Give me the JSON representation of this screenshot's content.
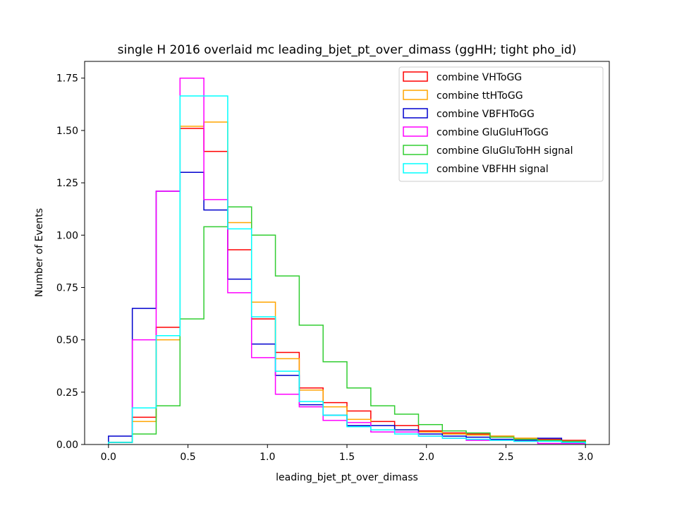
{
  "chart_data": {
    "type": "histogram-step",
    "title": "single H 2016 overlaid mc leading_bjet_pt_over_dimass (ggHH; tight pho_id)",
    "xlabel": "leading_bjet_pt_over_dimass",
    "ylabel": "Number of Events",
    "xlim": [
      -0.15,
      3.15
    ],
    "ylim": [
      0,
      1.83
    ],
    "xticks": [
      "0.0",
      "0.5",
      "1.0",
      "1.5",
      "2.0",
      "2.5",
      "3.0"
    ],
    "yticks": [
      "0.00",
      "0.25",
      "0.50",
      "0.75",
      "1.00",
      "1.25",
      "1.50",
      "1.75"
    ],
    "legend_position": "upper-right",
    "bin_edges": [
      0.0,
      0.15,
      0.3,
      0.45,
      0.6,
      0.75,
      0.9,
      1.05,
      1.2,
      1.35,
      1.5,
      1.65,
      1.8,
      1.95,
      2.1,
      2.25,
      2.4,
      2.55,
      2.7,
      2.85,
      3.0
    ],
    "series": [
      {
        "name": "combine VHToGG",
        "color": "#ff0000",
        "values": [
          0.01,
          0.13,
          0.56,
          1.51,
          1.4,
          0.93,
          0.6,
          0.44,
          0.27,
          0.2,
          0.16,
          0.11,
          0.09,
          0.065,
          0.055,
          0.05,
          0.04,
          0.03,
          0.025,
          0.02
        ]
      },
      {
        "name": "combine ttHToGG",
        "color": "#ffa500",
        "values": [
          0.01,
          0.11,
          0.5,
          1.52,
          1.54,
          1.06,
          0.68,
          0.41,
          0.26,
          0.18,
          0.12,
          0.09,
          0.07,
          0.06,
          0.05,
          0.045,
          0.04,
          0.03,
          0.02,
          0.015
        ]
      },
      {
        "name": "combine VBFHToGG",
        "color": "#0000cd",
        "values": [
          0.04,
          0.65,
          1.21,
          1.3,
          1.12,
          0.79,
          0.48,
          0.33,
          0.19,
          0.14,
          0.09,
          0.09,
          0.07,
          0.05,
          0.04,
          0.035,
          0.025,
          0.02,
          0.03,
          0.01
        ]
      },
      {
        "name": "combine GluGluHToGG",
        "color": "#ff00ff",
        "values": [
          0.01,
          0.5,
          1.21,
          1.75,
          1.17,
          0.725,
          0.415,
          0.24,
          0.18,
          0.115,
          0.105,
          0.06,
          0.06,
          0.04,
          0.03,
          0.02,
          0.02,
          0.015,
          0.005,
          0.005
        ]
      },
      {
        "name": "combine GluGluToHH signal",
        "color": "#32cd32",
        "values": [
          0.01,
          0.05,
          0.185,
          0.6,
          1.04,
          1.135,
          1.0,
          0.805,
          0.57,
          0.395,
          0.27,
          0.185,
          0.145,
          0.095,
          0.065,
          0.055,
          0.035,
          0.025,
          0.02,
          0.015
        ]
      },
      {
        "name": "combine VBFHH signal",
        "color": "#00ffff",
        "values": [
          0.01,
          0.175,
          0.52,
          1.665,
          1.665,
          1.03,
          0.61,
          0.35,
          0.205,
          0.14,
          0.085,
          0.07,
          0.05,
          0.04,
          0.03,
          0.025,
          0.02,
          0.015,
          0.015,
          0.01
        ]
      }
    ]
  }
}
